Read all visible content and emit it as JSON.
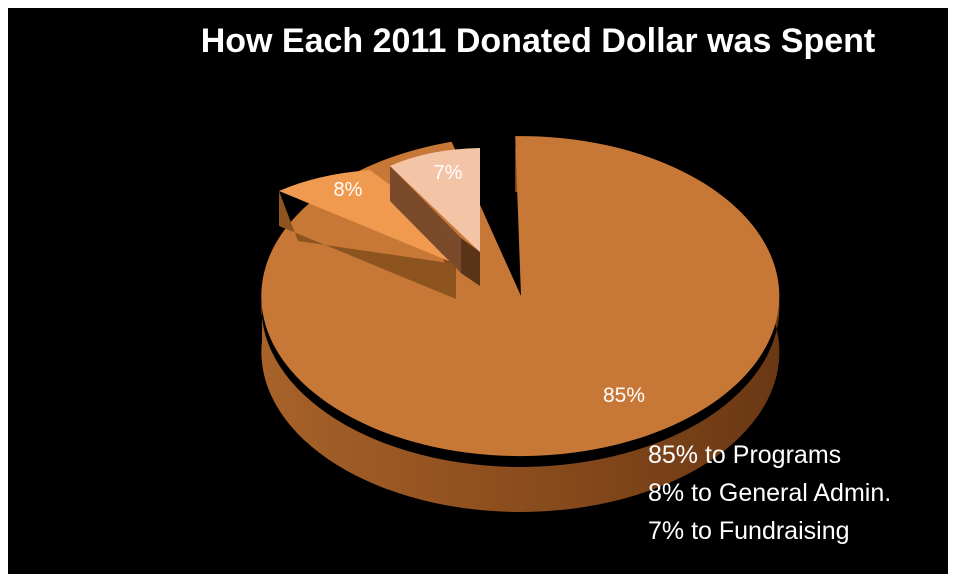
{
  "chart_data": {
    "type": "pie",
    "title": "How Each 2011 Donated Dollar was Spent",
    "slices": [
      {
        "label": "85%",
        "value": 85,
        "color": "#c77836"
      },
      {
        "label": "8%",
        "value": 8,
        "color": "#ef9a4e"
      },
      {
        "label": "7%",
        "value": 7,
        "color": "#f4c4a6"
      }
    ],
    "annotations": [
      "85% to Programs",
      "8% to General Admin.",
      "7% to Fundraising"
    ]
  }
}
